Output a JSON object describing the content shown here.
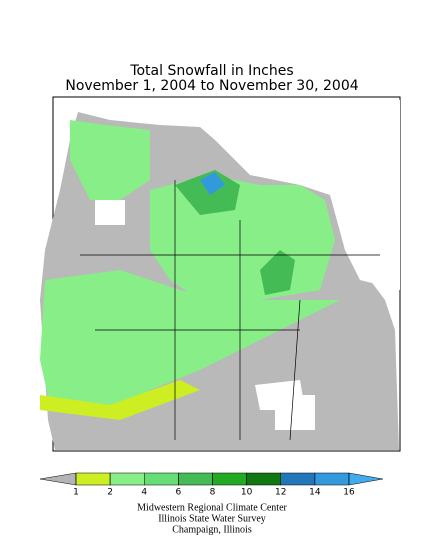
{
  "title": [
    "Total Snowfall in Inches",
    "November 1, 2004 to November 30, 2004"
  ],
  "legend": {
    "ticks": [
      1,
      2,
      4,
      6,
      8,
      10,
      12,
      14,
      16
    ],
    "colors": [
      "#b4b4b4",
      "#ccee22",
      "#88ee88",
      "#66dd77",
      "#44bb55",
      "#22aa22",
      "#117711",
      "#2277bb",
      "#3399dd",
      "#44aaee"
    ]
  },
  "footer": [
    "Midwestern Regional Climate Center",
    "Illinois State Water Survey",
    "Champaign, Illinois"
  ]
}
